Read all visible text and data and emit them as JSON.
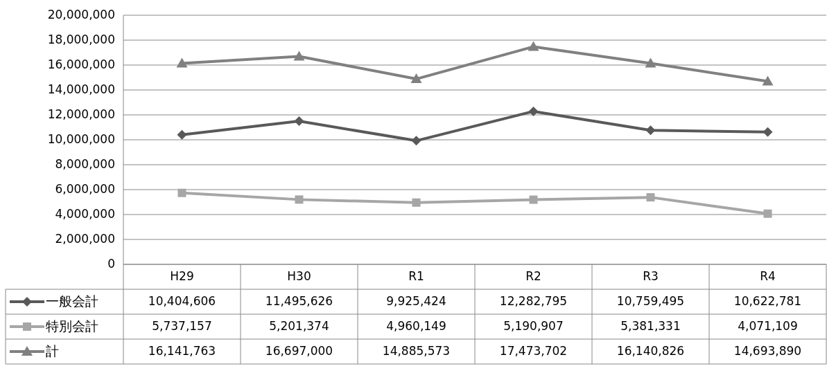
{
  "chart_data": {
    "type": "line",
    "categories": [
      "H29",
      "H30",
      "R1",
      "R2",
      "R3",
      "R4"
    ],
    "series": [
      {
        "name": "一般会計",
        "color": "#595959",
        "marker": "diamond",
        "values": [
          10404606,
          11495626,
          9925424,
          12282795,
          10759495,
          10622781
        ],
        "value_labels": [
          "10,404,606",
          "11,495,626",
          "9,925,424",
          "12,282,795",
          "10,759,495",
          "10,622,781"
        ]
      },
      {
        "name": "特別会計",
        "color": "#a6a6a6",
        "marker": "square",
        "values": [
          5737157,
          5201374,
          4960149,
          5190907,
          5381331,
          4071109
        ],
        "value_labels": [
          "5,737,157",
          "5,201,374",
          "4,960,149",
          "5,190,907",
          "5,381,331",
          "4,071,109"
        ]
      },
      {
        "name": "計",
        "color": "#808080",
        "marker": "triangle",
        "values": [
          16141763,
          16697000,
          14885573,
          17473702,
          16140826,
          14693890
        ],
        "value_labels": [
          "16,141,763",
          "16,697,000",
          "14,885,573",
          "17,473,702",
          "16,140,826",
          "14,693,890"
        ]
      }
    ],
    "ylim": [
      0,
      20000000
    ],
    "yticks": [
      {
        "value": 0,
        "label": "0"
      },
      {
        "value": 2000000,
        "label": "2,000,000"
      },
      {
        "value": 4000000,
        "label": "4,000,000"
      },
      {
        "value": 6000000,
        "label": "6,000,000"
      },
      {
        "value": 8000000,
        "label": "8,000,000"
      },
      {
        "value": 10000000,
        "label": "10,000,000"
      },
      {
        "value": 12000000,
        "label": "12,000,000"
      },
      {
        "value": 14000000,
        "label": "14,000,000"
      },
      {
        "value": 16000000,
        "label": "16,000,000"
      },
      {
        "value": 18000000,
        "label": "18,000,000"
      },
      {
        "value": 20000000,
        "label": "20,000,000"
      }
    ],
    "grid": "y",
    "legend": "bottom"
  }
}
